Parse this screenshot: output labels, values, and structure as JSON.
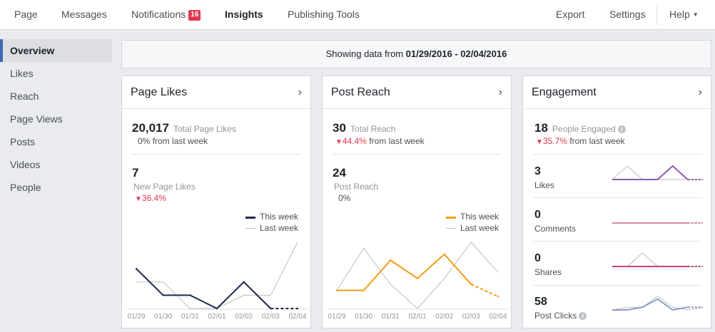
{
  "topnav": {
    "items": [
      {
        "label": "Page"
      },
      {
        "label": "Messages"
      },
      {
        "label": "Notifications",
        "badge": "16"
      },
      {
        "label": "Insights"
      },
      {
        "label": "Publishing Tools"
      }
    ],
    "right": {
      "export": "Export",
      "settings": "Settings",
      "help": "Help",
      "caret": "▼"
    }
  },
  "sidebar": {
    "items": [
      {
        "label": "Overview"
      },
      {
        "label": "Likes"
      },
      {
        "label": "Reach"
      },
      {
        "label": "Page Views"
      },
      {
        "label": "Posts"
      },
      {
        "label": "Videos"
      },
      {
        "label": "People"
      }
    ]
  },
  "banner": {
    "prefix": "Showing data from ",
    "range": "01/29/2016 - 02/04/2016"
  },
  "chevron": "›",
  "down_arrow": "▼",
  "info_glyph": "i",
  "colors": {
    "accent": "#4267b2",
    "negative": "#e0394d",
    "page_likes_this_week": "#1c2b4a",
    "post_reach_this_week": "#f49c14",
    "last_week": "#bdbdbd",
    "engagement_likes": "#8c5bb5",
    "engagement_comments": "#d08aa4",
    "engagement_shares": "#c2456e",
    "engagement_clicks": "#8a9cc8"
  },
  "cards": {
    "page_likes": {
      "title": "Page Likes",
      "total_value": "20,017",
      "total_label": "Total Page Likes",
      "total_change": "0%",
      "total_change_label": "from last week",
      "new_value": "7",
      "new_label": "New Page Likes",
      "new_change": "36.4%",
      "legend_this": "This week",
      "legend_last": "Last week"
    },
    "post_reach": {
      "title": "Post Reach",
      "total_value": "30",
      "total_label": "Total Reach",
      "total_change": "44.4%",
      "total_change_label": "from last week",
      "reach_value": "24",
      "reach_label": "Post Reach",
      "reach_change": "0%",
      "legend_this": "This week",
      "legend_last": "Last week"
    },
    "engagement": {
      "title": "Engagement",
      "total_value": "18",
      "total_label": "People Engaged",
      "total_change": "35.7%",
      "total_change_label": "from last week",
      "rows": [
        {
          "value": "3",
          "label": "Likes",
          "this_week": [
            1,
            1,
            1,
            1,
            2,
            1,
            1
          ],
          "last_week": [
            1,
            2,
            1,
            1,
            1,
            1,
            1
          ]
        },
        {
          "value": "0",
          "label": "Comments",
          "this_week": [
            0,
            0,
            0,
            0,
            0,
            0,
            0
          ],
          "last_week": [
            0,
            0,
            0,
            0,
            0,
            0,
            0
          ]
        },
        {
          "value": "0",
          "label": "Shares",
          "this_week": [
            0,
            0,
            0,
            0,
            0,
            0,
            0
          ],
          "last_week": [
            0,
            0,
            1,
            0,
            0,
            0,
            0
          ]
        },
        {
          "value": "58",
          "label": "Post Clicks",
          "this_week": [
            8,
            8,
            9,
            12,
            8,
            9,
            9
          ],
          "last_week": [
            8,
            9,
            9,
            13,
            9,
            8,
            9
          ]
        }
      ]
    }
  },
  "chart_data": [
    {
      "type": "line",
      "x": [
        "01/29",
        "01/30",
        "01/31",
        "02/01",
        "02/02",
        "02/03",
        "02/04"
      ],
      "series": [
        {
          "name": "This week",
          "values": [
            3,
            1,
            1,
            0,
            2,
            0,
            0
          ]
        },
        {
          "name": "Last week",
          "values": [
            2,
            2,
            0,
            0,
            1,
            1,
            5
          ]
        }
      ],
      "ylim": [
        0,
        5
      ]
    },
    {
      "type": "line",
      "x": [
        "01/29",
        "01/30",
        "01/31",
        "02/01",
        "02/02",
        "02/03",
        "02/04"
      ],
      "series": [
        {
          "name": "This week",
          "values": [
            3,
            3,
            8,
            5,
            9,
            4,
            2
          ]
        },
        {
          "name": "Last week",
          "values": [
            3,
            10,
            4,
            0,
            5,
            11,
            6
          ]
        }
      ],
      "ylim": [
        0,
        11
      ]
    }
  ]
}
